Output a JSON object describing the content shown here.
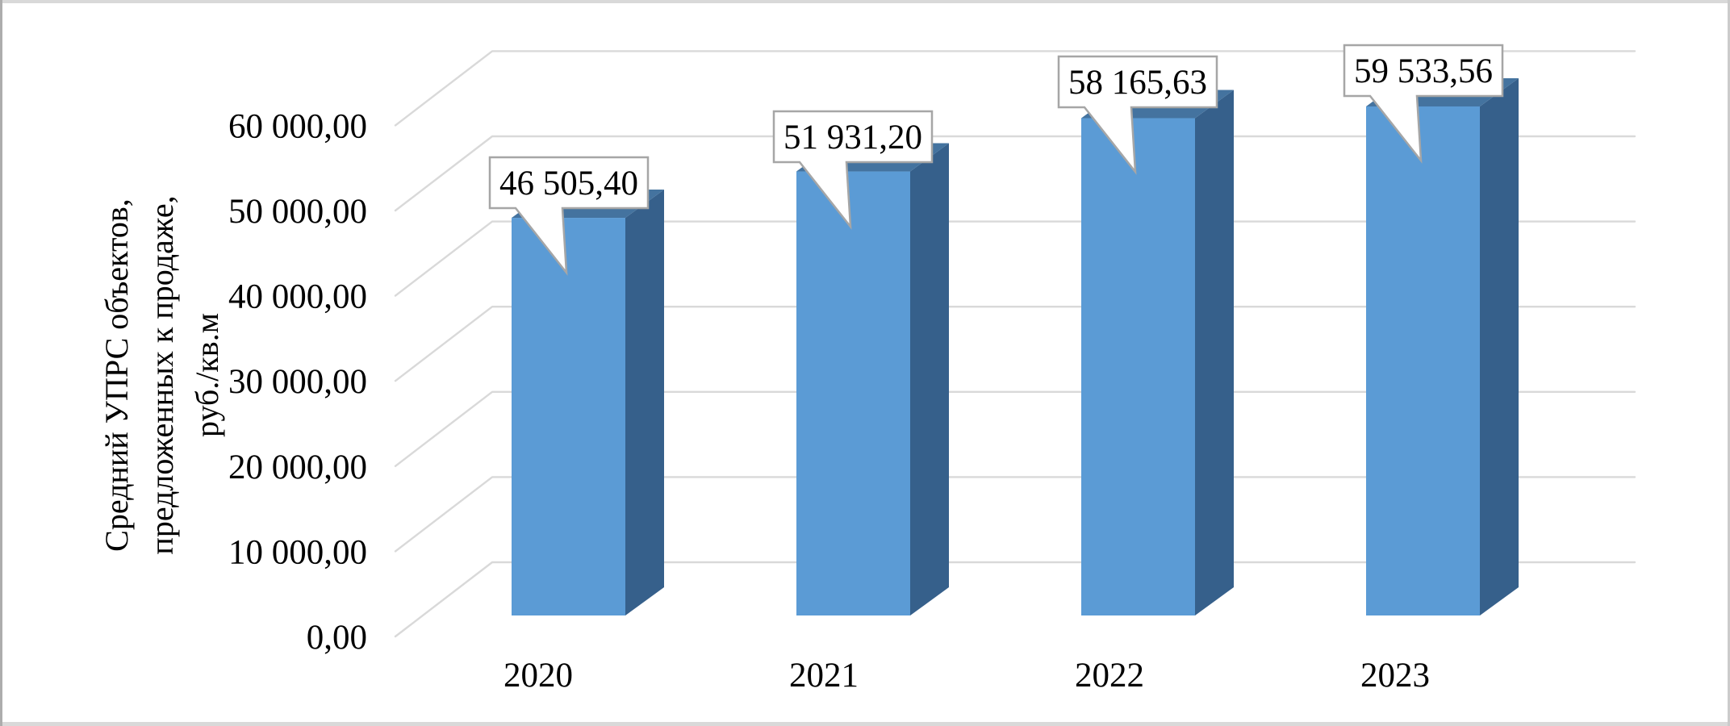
{
  "chart_data": {
    "type": "bar",
    "variant": "3d-column",
    "title": "",
    "categories": [
      "2020",
      "2021",
      "2022",
      "2023"
    ],
    "series": [
      {
        "name": "Средний УПРС",
        "values": [
          46505.4,
          51931.2,
          58165.63,
          59533.56
        ],
        "data_labels": [
          "46 505,40",
          "51 931,20",
          "58 165,63",
          "59 533,56"
        ]
      }
    ],
    "xlabel": "",
    "ylabel": "Средний УПРС объектов, предложенных к продаже, руб./кв.м",
    "ylim": [
      0,
      60000
    ],
    "grid": true,
    "legend_position": "none",
    "y_axis": {
      "title_lines": [
        "Средний УПРС объектов,",
        "предложенных к продаже,",
        "руб./кв.м"
      ],
      "tick_values": [
        0,
        10000,
        20000,
        30000,
        40000,
        50000,
        60000
      ],
      "tick_labels": [
        "0,00",
        "10 000,00",
        "20 000,00",
        "30 000,00",
        "40 000,00",
        "50 000,00",
        "60 000,00"
      ]
    },
    "colors": {
      "bar_front": "#5B9BD5",
      "bar_top": "#44739F",
      "bar_side": "#36608B",
      "gridline": "#D9D9D9",
      "callout_fill": "#FFFFFF",
      "callout_border": "#A6A6A6",
      "text": "#000000"
    }
  }
}
